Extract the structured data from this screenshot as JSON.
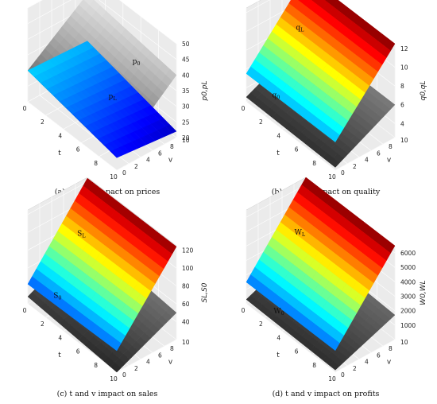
{
  "chart_data": [
    {
      "type": "surface",
      "caption": "(a) t and v impact on prices",
      "zlabel": "p0,pL",
      "xlabel": "t",
      "ylabel": "v",
      "xticks": [
        "0",
        "2",
        "4",
        "6",
        "8",
        "10"
      ],
      "yticks": [
        "0",
        "2",
        "4",
        "6",
        "8",
        "10"
      ],
      "zticks": [
        "20",
        "25",
        "30",
        "35",
        "40",
        "45",
        "50"
      ],
      "zlim": [
        20,
        50
      ],
      "series": [
        {
          "name": "p0",
          "colormap": "gray",
          "corners": {
            "t0v0": 30,
            "t10v0": 24,
            "t0v10": 44,
            "t10v10": 40
          }
        },
        {
          "name": "pL",
          "colormap": "jet",
          "corners": {
            "t0v0": 30,
            "t10v0": 24,
            "t0v10": 29,
            "t10v10": 22
          }
        }
      ]
    },
    {
      "type": "surface",
      "caption": "(b) t and v impact on quality",
      "zlabel": "q0,qL",
      "xlabel": "t",
      "ylabel": "v",
      "xticks": [
        "0",
        "2",
        "4",
        "6",
        "8",
        "10"
      ],
      "yticks": [
        "0",
        "2",
        "4",
        "6",
        "8",
        "10"
      ],
      "zticks": [
        "4",
        "6",
        "8",
        "10",
        "12"
      ],
      "zlim": [
        2.5,
        12.5
      ],
      "series": [
        {
          "name": "qL",
          "colormap": "jet",
          "corners": {
            "t0v0": 5.5,
            "t10v0": 5.5,
            "t0v10": 12.5,
            "t10v10": 12.5
          }
        },
        {
          "name": "q0",
          "colormap": "gray",
          "corners": {
            "t0v0": 3.0,
            "t10v0": 2.8,
            "t0v10": 6.0,
            "t10v10": 6.0
          }
        }
      ]
    },
    {
      "type": "surface",
      "caption": "(c) t and v impact on sales",
      "zlabel": "SL,S0",
      "xlabel": "t",
      "ylabel": "v",
      "xticks": [
        "0",
        "2",
        "4",
        "6",
        "8",
        "10"
      ],
      "yticks": [
        "0",
        "2",
        "4",
        "6",
        "8",
        "10"
      ],
      "zticks": [
        "40",
        "60",
        "80",
        "100",
        "120"
      ],
      "zlim": [
        20,
        125
      ],
      "series": [
        {
          "name": "SL",
          "colormap": "jet",
          "corners": {
            "t0v0": 42,
            "t10v0": 44,
            "t0v10": 124,
            "t10v10": 124
          }
        },
        {
          "name": "S0",
          "colormap": "gray",
          "corners": {
            "t0v0": 28,
            "t10v0": 20,
            "t0v10": 60,
            "t10v10": 50
          }
        }
      ]
    },
    {
      "type": "surface",
      "caption": "(d) t and v impact on profits",
      "zlabel": "W0,WL",
      "xlabel": "t",
      "ylabel": "v",
      "xticks": [
        "0",
        "2",
        "4",
        "6",
        "8",
        "10"
      ],
      "yticks": [
        "0",
        "2",
        "4",
        "6",
        "8",
        "10"
      ],
      "zticks": [
        "1000",
        "2000",
        "3000",
        "4000",
        "5000",
        "6000"
      ],
      "zlim": [
        0,
        6500
      ],
      "series": [
        {
          "name": "WL",
          "colormap": "jet",
          "corners": {
            "t0v0": 1500,
            "t10v0": 1500,
            "t0v10": 6500,
            "t10v10": 6500
          }
        },
        {
          "name": "W0",
          "colormap": "gray",
          "corners": {
            "t0v0": 300,
            "t10v0": 150,
            "t0v10": 2000,
            "t10v10": 1700
          }
        }
      ]
    }
  ]
}
